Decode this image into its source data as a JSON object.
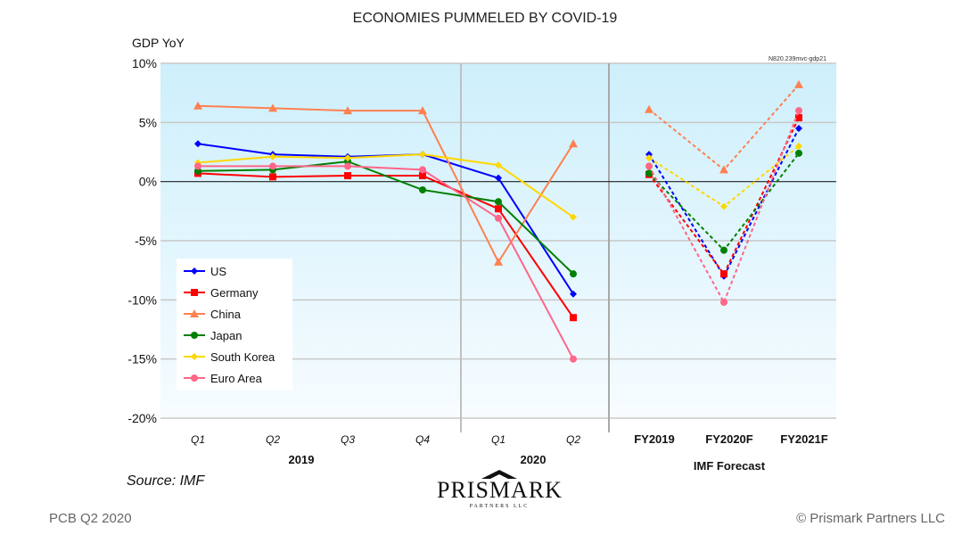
{
  "title": "ECONOMIES PUMMELED BY COVID-19",
  "code": "N820.239mvc-gdp21",
  "source": "Source: IMF",
  "footer_left": "PCB Q2 2020",
  "footer_right": "© Prismark Partners LLC",
  "logo": {
    "name": "PRISMARK",
    "sub": "PARTNERS LLC"
  },
  "chart_data": {
    "type": "line",
    "title": "ECONOMIES PUMMELED BY COVID-19",
    "ylabel": "GDP YoY",
    "ylim": [
      -20,
      10
    ],
    "yticks": [
      "10%",
      "5%",
      "0%",
      "-5%",
      "-10%",
      "-15%",
      "-20%"
    ],
    "quarter_labels": [
      "Q1",
      "Q2",
      "Q3",
      "Q4",
      "Q1",
      "Q2"
    ],
    "year_labels": [
      "2019",
      "2020"
    ],
    "forecast_labels": [
      "FY2019",
      "FY2020F",
      "FY2021F"
    ],
    "forecast_group": "IMF Forecast",
    "legend_position": "bottom-left",
    "series": [
      {
        "name": "US",
        "color": "#0000ff",
        "marker": "diamond",
        "quarterly": [
          3.2,
          2.3,
          2.1,
          2.3,
          0.3,
          -9.5
        ],
        "forecast": [
          2.3,
          -8.0,
          4.5
        ]
      },
      {
        "name": "Germany",
        "color": "#ff0000",
        "marker": "square",
        "quarterly": [
          0.7,
          0.4,
          0.5,
          0.5,
          -2.3,
          -11.5
        ],
        "forecast": [
          0.6,
          -7.8,
          5.4
        ]
      },
      {
        "name": "China",
        "color": "#ff8050",
        "marker": "triangle",
        "quarterly": [
          6.4,
          6.2,
          6.0,
          6.0,
          -6.8,
          3.2
        ],
        "forecast": [
          6.1,
          1.0,
          8.2
        ]
      },
      {
        "name": "Japan",
        "color": "#008000",
        "marker": "circle",
        "quarterly": [
          0.9,
          1.0,
          1.7,
          -0.7,
          -1.7,
          -7.8
        ],
        "forecast": [
          0.7,
          -5.8,
          2.4
        ]
      },
      {
        "name": "South Korea",
        "color": "#ffd700",
        "marker": "diamond",
        "quarterly": [
          1.6,
          2.1,
          2.0,
          2.3,
          1.4,
          -3.0
        ],
        "forecast": [
          2.0,
          -2.1,
          3.0
        ]
      },
      {
        "name": "Euro Area",
        "color": "#ff6688",
        "marker": "circle",
        "quarterly": [
          1.3,
          1.3,
          1.3,
          1.0,
          -3.1,
          -15.0
        ],
        "forecast": [
          1.3,
          -10.2,
          6.0
        ]
      }
    ]
  }
}
